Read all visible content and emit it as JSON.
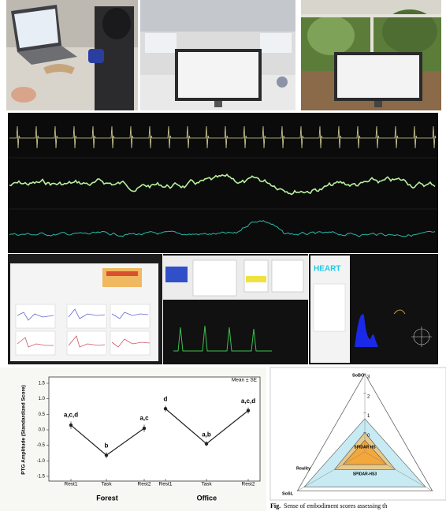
{
  "panels": {
    "heart_label": "HEART"
  },
  "chart_data": [
    {
      "type": "line",
      "ylabel": "PTG Amplitude (Standardized Score)",
      "note": "Mean ± SE",
      "categories": [
        "Rest1",
        "Task",
        "Rest2",
        "Rest1",
        "Task",
        "Rest2"
      ],
      "series": [
        {
          "name": "Forest",
          "color": "#222222",
          "values": [
            0.15,
            -0.82,
            0.05,
            null,
            null,
            null
          ],
          "errors": [
            0.12,
            0.1,
            0.12,
            null,
            null,
            null
          ],
          "point_labels": [
            "a,c,d",
            "b",
            "a,c",
            null,
            null,
            null
          ]
        },
        {
          "name": "Office",
          "color": "#222222",
          "values": [
            null,
            null,
            null,
            0.68,
            -0.45,
            0.62
          ],
          "errors": [
            null,
            null,
            null,
            0.1,
            0.08,
            0.1
          ],
          "point_labels": [
            null,
            null,
            null,
            "d",
            "a,b",
            "a,c,d"
          ]
        }
      ],
      "ylim": [
        -1.5,
        1.5
      ],
      "yticks": [
        -1.5,
        {
          "value": -1,
          "label": "-1.0"
        },
        -0.5,
        {
          "value": 0,
          "label": "0.0"
        },
        0.5,
        {
          "value": 1,
          "label": "1.0"
        },
        1.5
      ]
    },
    {
      "type": "radar",
      "axes": [
        "SoBO",
        "SoSL",
        null
      ],
      "annotation": "Reality",
      "rlim": [
        -1,
        3
      ],
      "rticks": [
        3,
        2,
        1,
        0
      ],
      "series": [
        {
          "color": "#c8eaf2",
          "values": [
            0.7,
            2.6,
            2.6
          ]
        },
        {
          "name": "SPIDAR-HS3",
          "color": "#e8c98a",
          "values": [
            0.0,
            0.8,
            0.8
          ]
        },
        {
          "name": "SPIDAR HS",
          "color": "#f4a73a",
          "values": [
            -0.4,
            0.3,
            0.3
          ]
        }
      ],
      "caption_bold": "Fig.",
      "caption": "Sense of embodiment scores assessing th"
    }
  ]
}
